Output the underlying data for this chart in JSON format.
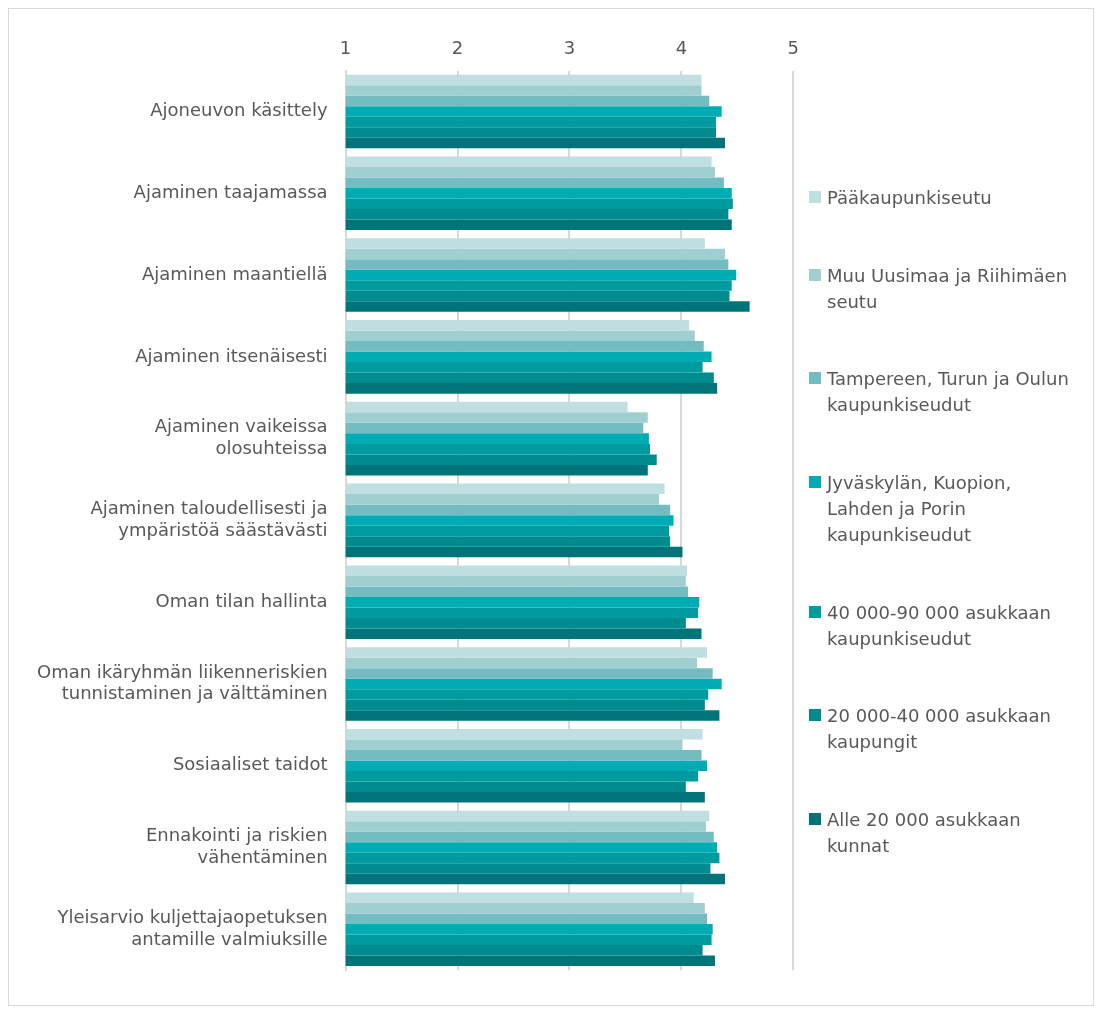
{
  "chart_data": {
    "type": "bar",
    "orientation": "horizontal",
    "categories": [
      "Ajoneuvon käsittely",
      "Ajaminen taajamassa",
      "Ajaminen maantiellä",
      "Ajaminen itsenäisesti",
      "Ajaminen vaikeissa olosuhteissa",
      "Ajaminen taloudellisesti ja ympäristöä säästävästi",
      "Oman tilan hallinta",
      "Oman ikäryhmän liikenneriskien tunnistaminen ja välttäminen",
      "Sosiaaliset taidot",
      "Ennakointi ja riskien vähentäminen",
      "Yleisarvio kuljettajaopetuksen antamille valmiuksille"
    ],
    "series": [
      {
        "name": "Pääkaupunkiseutu",
        "color": "#c0dfe0",
        "values": [
          4.18,
          4.27,
          4.21,
          4.07,
          3.52,
          3.85,
          4.05,
          4.23,
          4.19,
          4.25,
          4.11
        ]
      },
      {
        "name": "Muu Uusimaa ja Riihimäen seutu",
        "color": "#a0cfd1",
        "values": [
          4.18,
          4.3,
          4.39,
          4.12,
          3.7,
          3.8,
          4.04,
          4.14,
          4.01,
          4.22,
          4.21
        ]
      },
      {
        "name": "Tampereen, Turun ja Oulun kaupunkiseudut",
        "color": "#73bcc1",
        "values": [
          4.25,
          4.38,
          4.42,
          4.2,
          3.66,
          3.9,
          4.06,
          4.28,
          4.18,
          4.29,
          4.23
        ]
      },
      {
        "name": "Jyväskylän, Kuopion, Lahden ja Porin kaupunkiseudut",
        "color": "#00acb3",
        "values": [
          4.36,
          4.45,
          4.49,
          4.27,
          3.71,
          3.93,
          4.16,
          4.36,
          4.23,
          4.32,
          4.28
        ]
      },
      {
        "name": "40 000-90 000 asukkaan kaupunkiseudut",
        "color": "#009b9e",
        "values": [
          4.31,
          4.46,
          4.45,
          4.19,
          3.72,
          3.89,
          4.15,
          4.24,
          4.15,
          4.34,
          4.27
        ]
      },
      {
        "name": "20 000-40 000 asukkaan kaupungit",
        "color": "#008b8e",
        "values": [
          4.31,
          4.42,
          4.43,
          4.29,
          3.78,
          3.9,
          4.04,
          4.21,
          4.04,
          4.26,
          4.19
        ]
      },
      {
        "name": "Alle 20 000 asukkaan kunnat",
        "color": "#007479",
        "values": [
          4.39,
          4.45,
          4.61,
          4.32,
          3.7,
          4.01,
          4.18,
          4.34,
          4.21,
          4.39,
          4.3
        ]
      }
    ],
    "xlim": [
      1,
      5
    ],
    "xticks": [
      1,
      2,
      3,
      4,
      5
    ],
    "grid": "x",
    "legend": "right"
  }
}
